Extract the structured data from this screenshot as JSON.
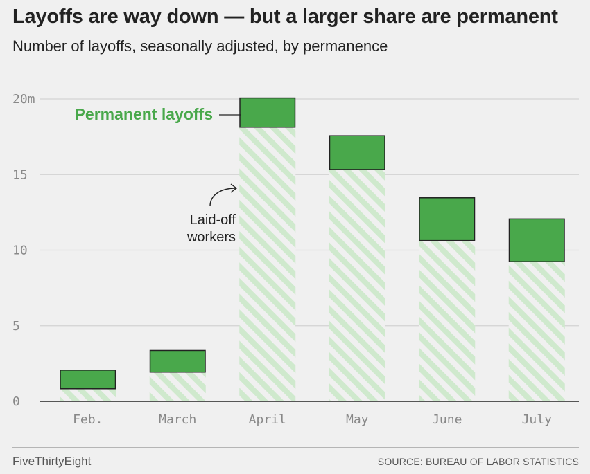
{
  "header": {
    "title": "Layoffs are way down — but a larger share are permanent",
    "subtitle": "Number of layoffs, seasonally adjusted, by permanence"
  },
  "chart_data": {
    "type": "bar",
    "stacked": true,
    "categories": [
      "Feb.",
      "March",
      "April",
      "May",
      "June",
      "July"
    ],
    "series": [
      {
        "name": "Laid-off workers",
        "values": [
          0.8,
          1.9,
          18.1,
          15.3,
          10.6,
          9.2
        ],
        "color": "#cfe9cd",
        "pattern": "diagonal-stripes"
      },
      {
        "name": "Permanent layoffs",
        "values": [
          1.3,
          1.5,
          2.0,
          2.3,
          2.9,
          2.9
        ],
        "color": "#49a84b"
      }
    ],
    "yticks": [
      {
        "value": 0,
        "label": "0"
      },
      {
        "value": 5,
        "label": "5"
      },
      {
        "value": 10,
        "label": "10"
      },
      {
        "value": 15,
        "label": "15"
      },
      {
        "value": 20,
        "label": "20m"
      }
    ],
    "ylim": [
      0,
      20
    ],
    "grid": true,
    "annotations": {
      "permanent": "Permanent layoffs",
      "laid_off_line1": "Laid-off",
      "laid_off_line2": "workers"
    }
  },
  "footer": {
    "brand": "FiveThirtyEight",
    "source": "SOURCE: BUREAU OF LABOR STATISTICS"
  },
  "colors": {
    "permanent": "#49a84b",
    "laid_off_stripe": "#cfe9cd",
    "background": "#f0f0f0",
    "grid": "#d3d3d3"
  }
}
